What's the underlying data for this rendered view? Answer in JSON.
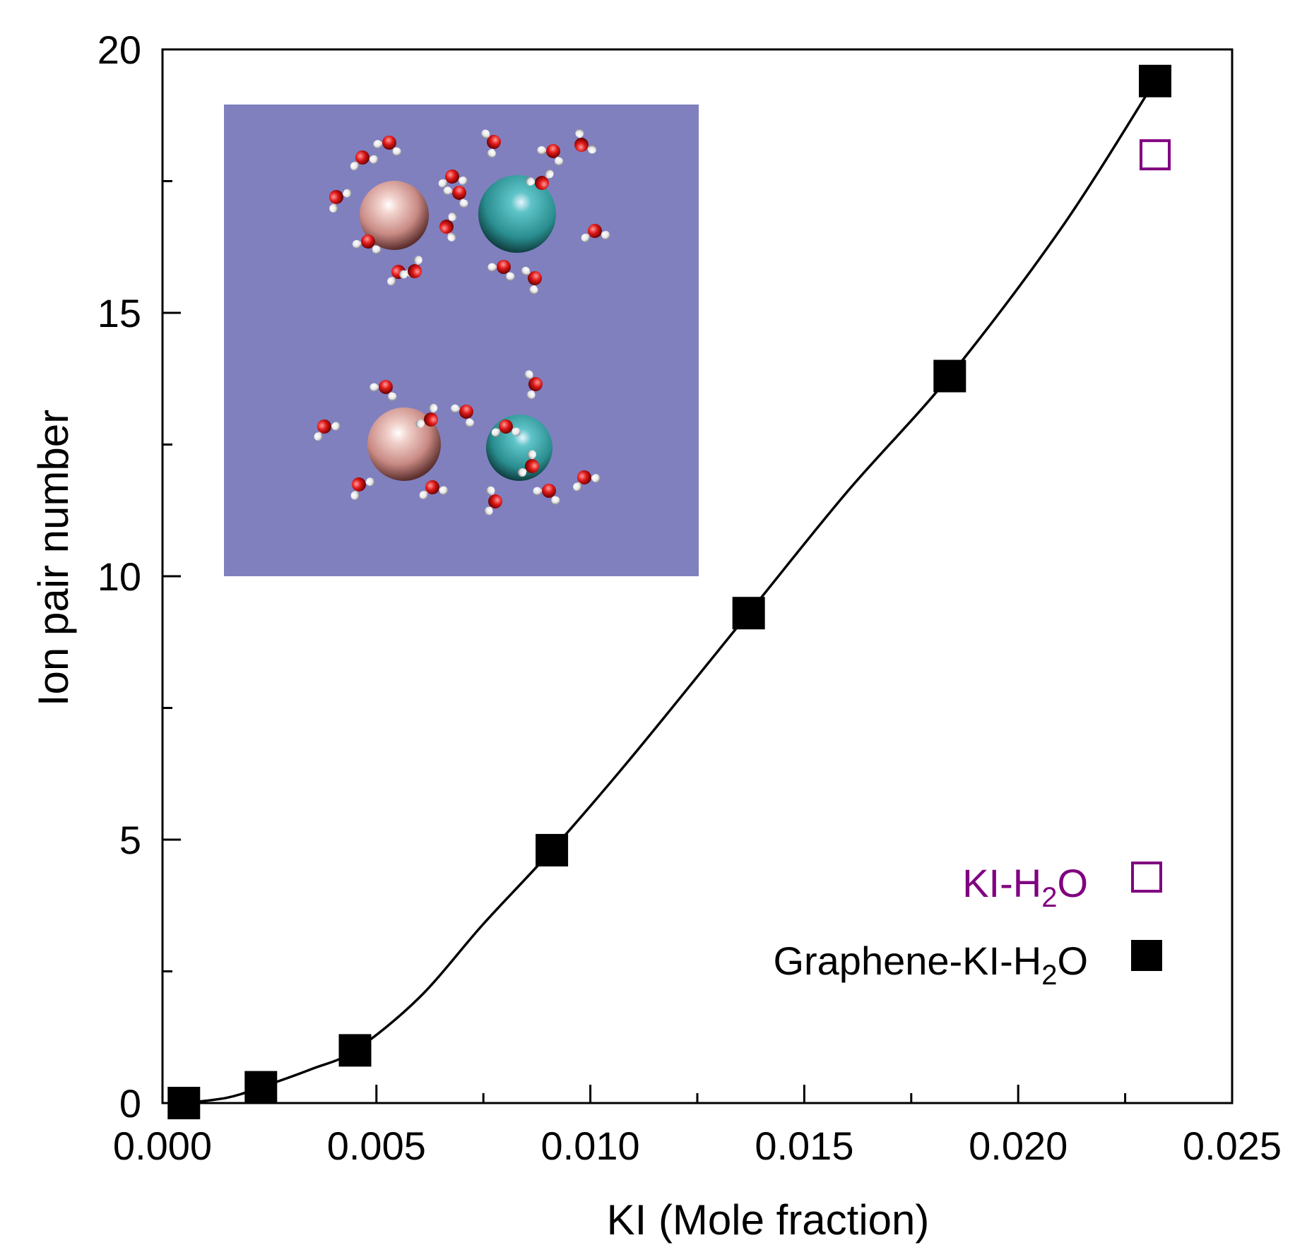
{
  "chart_data": {
    "type": "scatter",
    "xlabel": "KI (Mole fraction)",
    "ylabel": "Ion pair number",
    "xlim": [
      0.0,
      0.025
    ],
    "ylim": [
      0,
      20
    ],
    "x_ticks": [
      "0.000",
      "0.005",
      "0.010",
      "0.015",
      "0.020",
      "0.025"
    ],
    "x_tick_values": [
      0.0,
      0.005,
      0.01,
      0.015,
      0.02,
      0.025
    ],
    "y_ticks": [
      "0",
      "5",
      "10",
      "15",
      "20"
    ],
    "y_tick_values": [
      0,
      5,
      10,
      15,
      20
    ],
    "grid": false,
    "legend_placement": "bottom-right",
    "series": [
      {
        "name_parts": {
          "pre": "KI-H",
          "sub": "2",
          "post": "O"
        },
        "marker": "open-square",
        "color": "#800080",
        "x": [
          0.0232
        ],
        "y": [
          18.0
        ]
      },
      {
        "name_parts": {
          "pre": "Graphene-KI-H",
          "sub": "2",
          "post": "O"
        },
        "marker": "filled-square",
        "color": "#000000",
        "x": [
          0.0005,
          0.0023,
          0.0045,
          0.0091,
          0.0137,
          0.0184,
          0.0232
        ],
        "y": [
          0.0,
          0.3,
          1.0,
          4.8,
          9.3,
          13.8,
          19.4
        ]
      }
    ],
    "fit_curve": {
      "color": "#000000",
      "x": [
        0.0005,
        0.0015,
        0.0023,
        0.0035,
        0.0045,
        0.006,
        0.0075,
        0.0091,
        0.011,
        0.0137,
        0.016,
        0.0184,
        0.021,
        0.0232
      ],
      "y": [
        0.0,
        0.1,
        0.3,
        0.65,
        1.0,
        2.0,
        3.4,
        4.8,
        6.6,
        9.3,
        11.6,
        13.8,
        16.6,
        19.4
      ]
    },
    "inset": {
      "description_none": "",
      "background": "#8080BF"
    }
  }
}
